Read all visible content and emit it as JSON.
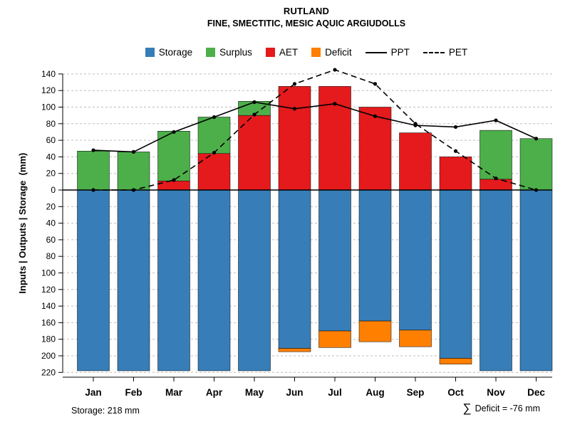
{
  "header": {
    "title": "RUTLAND",
    "subtitle": "FINE, SMECTITIC, MESIC AQUIC ARGIUDOLLS"
  },
  "legend": [
    {
      "label": "Storage",
      "swatch": "square",
      "color": "#377EB8"
    },
    {
      "label": "Surplus",
      "swatch": "square",
      "color": "#4DAF4A"
    },
    {
      "label": "AET",
      "swatch": "square",
      "color": "#E41A1C"
    },
    {
      "label": "Deficit",
      "swatch": "square",
      "color": "#FF7F00"
    },
    {
      "label": "PPT",
      "swatch": "line-solid",
      "color": "#000000"
    },
    {
      "label": "PET",
      "swatch": "line-dashed",
      "color": "#000000"
    }
  ],
  "chart_data": {
    "type": "bar",
    "title": "RUTLAND",
    "subtitle": "FINE, SMECTITIC, MESIC AQUIC ARGIUDOLLS",
    "categories": [
      "Jan",
      "Feb",
      "Mar",
      "Apr",
      "May",
      "Jun",
      "Jul",
      "Aug",
      "Sep",
      "Oct",
      "Nov",
      "Dec"
    ],
    "ylabel": "Inputs | Outputs | Storage  (mm)",
    "y_ticks_above": [
      0,
      20,
      40,
      60,
      80,
      100,
      120,
      140
    ],
    "y_ticks_below": [
      20,
      40,
      60,
      80,
      100,
      120,
      140,
      160,
      180,
      200,
      220
    ],
    "grid": true,
    "legend_position": "top",
    "series": [
      {
        "name": "AET",
        "type": "bar",
        "stack": "above",
        "order": 0,
        "color": "#E41A1C",
        "values": [
          0,
          0,
          11,
          44,
          90,
          125,
          125,
          100,
          69,
          40,
          13,
          0
        ]
      },
      {
        "name": "Surplus",
        "type": "bar",
        "stack": "above",
        "order": 1,
        "color": "#4DAF4A",
        "values": [
          47,
          46,
          60,
          44,
          17,
          0,
          0,
          0,
          0,
          0,
          59,
          62
        ]
      },
      {
        "name": "Storage",
        "type": "bar",
        "stack": "below",
        "order": 0,
        "color": "#377EB8",
        "values": [
          218,
          218,
          218,
          218,
          218,
          191,
          170,
          158,
          169,
          203,
          218,
          218
        ]
      },
      {
        "name": "Deficit",
        "type": "bar",
        "stack": "below",
        "order": 1,
        "color": "#FF7F00",
        "values": [
          0,
          0,
          0,
          0,
          0,
          4,
          20,
          25,
          20,
          7,
          0,
          0
        ]
      },
      {
        "name": "PPT",
        "type": "line",
        "style": "solid",
        "color": "#000000",
        "values": [
          48,
          46,
          70,
          88,
          106,
          98,
          104,
          89,
          78,
          76,
          84,
          62
        ]
      },
      {
        "name": "PET",
        "type": "line",
        "style": "dashed",
        "color": "#000000",
        "values": [
          0,
          0,
          12,
          45,
          91,
          128,
          145,
          128,
          80,
          47,
          14,
          0
        ]
      }
    ]
  },
  "footer": {
    "storage_note": "Storage: 218 mm",
    "sum_symbol": "∑",
    "deficit_note": "Deficit = -76 mm"
  }
}
